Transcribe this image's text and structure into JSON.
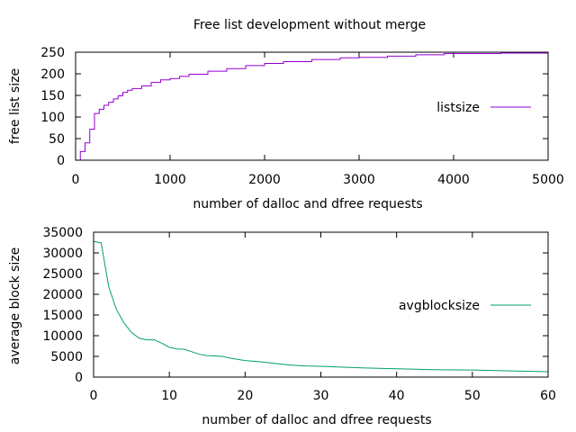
{
  "chart_data": [
    {
      "type": "line",
      "title": "Free list development without merge",
      "xlabel": "number of dalloc and dfree requests",
      "ylabel": "free list size",
      "xlim": [
        0,
        5000
      ],
      "ylim": [
        0,
        250
      ],
      "xticks": [
        0,
        1000,
        2000,
        3000,
        4000,
        5000
      ],
      "yticks": [
        0,
        50,
        100,
        150,
        200,
        250
      ],
      "grid": false,
      "legend_position": "right",
      "series": [
        {
          "name": "listsize",
          "color": "#9400d3",
          "style": "step",
          "x": [
            0,
            50,
            100,
            150,
            200,
            250,
            300,
            350,
            400,
            450,
            500,
            550,
            600,
            700,
            800,
            900,
            1000,
            1100,
            1200,
            1400,
            1600,
            1800,
            2000,
            2200,
            2500,
            2800,
            3000,
            3300,
            3600,
            3900,
            4000,
            4500,
            5000
          ],
          "y": [
            0,
            20,
            40,
            72,
            108,
            118,
            127,
            134,
            142,
            149,
            157,
            162,
            166,
            172,
            180,
            186,
            189,
            194,
            199,
            206,
            212,
            219,
            224,
            228,
            233,
            237,
            238,
            241,
            244,
            247,
            247,
            248,
            249
          ]
        }
      ]
    },
    {
      "type": "line",
      "title": "",
      "xlabel": "number of dalloc and dfree requests",
      "ylabel": "average block size",
      "xlim": [
        0,
        60
      ],
      "ylim": [
        0,
        35000
      ],
      "xticks": [
        0,
        10,
        20,
        30,
        40,
        50,
        60
      ],
      "yticks": [
        0,
        5000,
        10000,
        15000,
        20000,
        25000,
        30000,
        35000
      ],
      "grid": false,
      "legend_position": "right",
      "series": [
        {
          "name": "avgblocksize",
          "color": "#009e73",
          "style": "line",
          "x": [
            0,
            1,
            2,
            3,
            4,
            5,
            6,
            7,
            8,
            9,
            10,
            11,
            12,
            13,
            14,
            15,
            16,
            17,
            18,
            20,
            22,
            24,
            26,
            28,
            30,
            33,
            36,
            40,
            45,
            50,
            55,
            60
          ],
          "y": [
            32800,
            32400,
            21800,
            16400,
            13100,
            10800,
            9400,
            9000,
            9000,
            8200,
            7200,
            6800,
            6700,
            6100,
            5500,
            5200,
            5100,
            5000,
            4600,
            4000,
            3700,
            3300,
            2900,
            2700,
            2600,
            2400,
            2200,
            2000,
            1800,
            1700,
            1500,
            1300
          ]
        }
      ]
    }
  ]
}
